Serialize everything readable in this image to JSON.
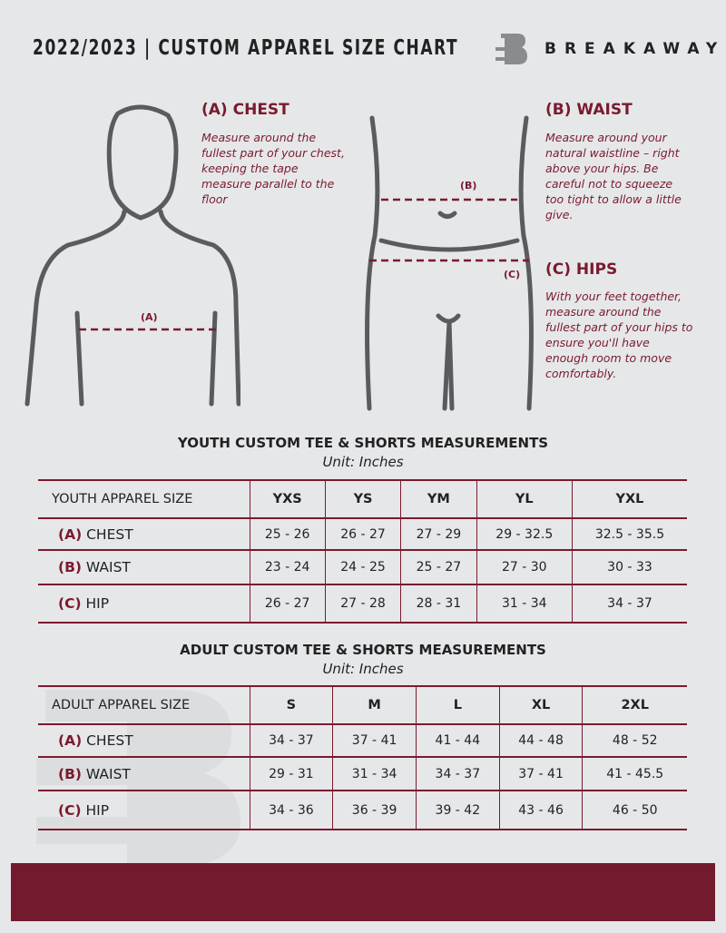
{
  "header": {
    "title": "2022/2023  |  CUSTOM APPAREL SIZE CHART",
    "brand": "BREAKAWAY"
  },
  "measures": {
    "chest": {
      "title": "(A) CHEST",
      "text": "Measure around the fullest part of your chest, keeping the tape measure parallel to the floor",
      "marker": "(A)"
    },
    "waist": {
      "title": "(B) WAIST",
      "text": "Measure around your natural waistline – right above your hips. Be careful not to squeeze too tight to allow a little give.",
      "marker": "(B)"
    },
    "hips": {
      "title": "(C) HIPS",
      "text": "With your feet together, measure around the fullest part of your hips to ensure you'll have enough room to move comfortably.",
      "marker": "(C)"
    }
  },
  "youth": {
    "title": "YOUTH CUSTOM TEE & SHORTS MEASUREMENTS",
    "unit": "Unit: Inches",
    "header": "YOUTH APPAREL SIZE",
    "sizes": [
      "YXS",
      "YS",
      "YM",
      "YL",
      "YXL"
    ],
    "rows": [
      {
        "letter": "(A)",
        "label": "CHEST",
        "values": [
          "25 - 26",
          "26 - 27",
          "27 - 29",
          "29 - 32.5",
          "32.5 - 35.5"
        ]
      },
      {
        "letter": "(B)",
        "label": "WAIST",
        "values": [
          "23 - 24",
          "24 - 25",
          "25 - 27",
          "27 - 30",
          "30 - 33"
        ]
      },
      {
        "letter": "(C)",
        "label": "HIP",
        "values": [
          "26 - 27",
          "27 - 28",
          "28 - 31",
          "31 - 34",
          "34 - 37"
        ]
      }
    ]
  },
  "adult": {
    "title": "ADULT CUSTOM TEE & SHORTS MEASUREMENTS",
    "unit": "Unit: Inches",
    "header": "ADULT APPAREL SIZE",
    "sizes": [
      "S",
      "M",
      "L",
      "XL",
      "2XL"
    ],
    "rows": [
      {
        "letter": "(A)",
        "label": "CHEST",
        "values": [
          "34 - 37",
          "37 - 41",
          "41 - 44",
          "44 - 48",
          "48 - 52"
        ]
      },
      {
        "letter": "(B)",
        "label": "WAIST",
        "values": [
          "29 - 31",
          "31 - 34",
          "34 - 37",
          "37 - 41",
          "41 - 45.5"
        ]
      },
      {
        "letter": "(C)",
        "label": "HIP",
        "values": [
          "34 - 36",
          "36 - 39",
          "39 - 42",
          "43 - 46",
          "46 - 50"
        ]
      }
    ]
  },
  "colors": {
    "accent": "#7a1a2e",
    "background": "#e6e7e9",
    "footer": "#731a2e"
  }
}
